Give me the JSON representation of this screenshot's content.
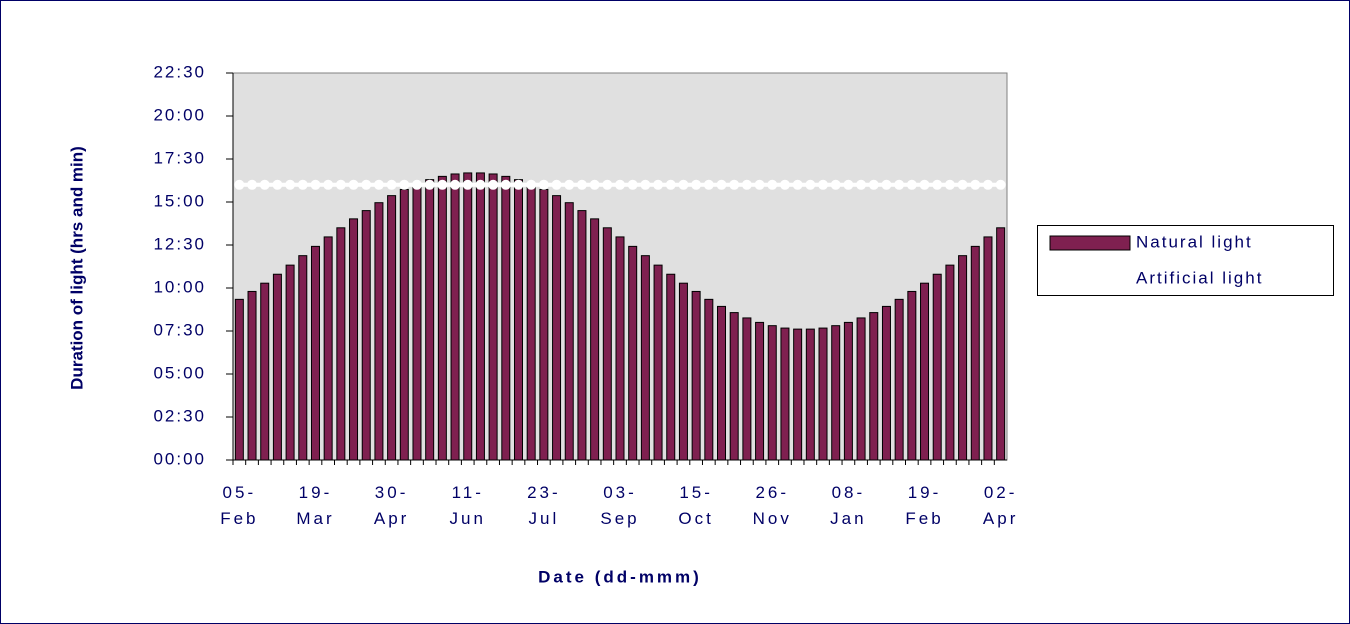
{
  "chart_data": {
    "type": "bar",
    "x_label": "Date (dd-mmm)",
    "y_label": "Duration of light (hrs and min)",
    "categories": [
      "05-Feb",
      null,
      null,
      null,
      null,
      null,
      "19-Mar",
      null,
      null,
      null,
      null,
      null,
      "30-Apr",
      null,
      null,
      null,
      null,
      null,
      "11-Jun",
      null,
      null,
      null,
      null,
      null,
      "23-Jul",
      null,
      null,
      null,
      null,
      null,
      "03-Sep",
      null,
      null,
      null,
      null,
      null,
      "15-Oct",
      null,
      null,
      null,
      null,
      null,
      "26-Nov",
      null,
      null,
      null,
      null,
      null,
      "08-Jan",
      null,
      null,
      null,
      null,
      null,
      "19-Feb",
      null,
      null,
      null,
      null,
      null,
      "02-Apr"
    ],
    "series": [
      {
        "name": "Natural light",
        "color": "#7f2050",
        "type": "bar",
        "values": [
          9.34,
          9.8,
          10.28,
          10.8,
          11.33,
          11.88,
          12.42,
          12.97,
          13.5,
          14.02,
          14.5,
          14.96,
          15.37,
          15.73,
          16.04,
          16.3,
          16.49,
          16.63,
          16.69,
          16.69,
          16.63,
          16.49,
          16.3,
          16.04,
          15.73,
          15.37,
          14.96,
          14.5,
          14.02,
          13.5,
          12.97,
          12.42,
          11.88,
          11.33,
          10.8,
          10.28,
          9.8,
          9.34,
          8.93,
          8.57,
          8.26,
          8.0,
          7.81,
          7.67,
          7.61,
          7.61,
          7.67,
          7.81,
          8.0,
          8.26,
          8.57,
          8.93,
          9.34,
          9.8,
          10.28,
          10.8,
          11.33,
          11.88,
          12.42,
          12.97,
          13.5
        ]
      },
      {
        "name": "Artificial light",
        "color": "#ffffff",
        "type": "line",
        "values": [
          16,
          16,
          16,
          16,
          16,
          16,
          16,
          16,
          16,
          16,
          16,
          16,
          16,
          16,
          16,
          16,
          16,
          16,
          16,
          16,
          16,
          16,
          16,
          16,
          16,
          16,
          16,
          16,
          16,
          16,
          16,
          16,
          16,
          16,
          16,
          16,
          16,
          16,
          16,
          16,
          16,
          16,
          16,
          16,
          16,
          16,
          16,
          16,
          16,
          16,
          16,
          16,
          16,
          16,
          16,
          16,
          16,
          16,
          16,
          16,
          16
        ]
      }
    ],
    "ylim": [
      0,
      22.5
    ],
    "yticks": [
      {
        "value": 0,
        "label": "00:00"
      },
      {
        "value": 2.5,
        "label": "02:30"
      },
      {
        "value": 5,
        "label": "05:00"
      },
      {
        "value": 7.5,
        "label": "07:30"
      },
      {
        "value": 10,
        "label": "10:00"
      },
      {
        "value": 12.5,
        "label": "12:30"
      },
      {
        "value": 15,
        "label": "15:00"
      },
      {
        "value": 17.5,
        "label": "17:30"
      },
      {
        "value": 20,
        "label": "20:00"
      },
      {
        "value": 22.5,
        "label": "22:30"
      }
    ],
    "legend": "right"
  }
}
